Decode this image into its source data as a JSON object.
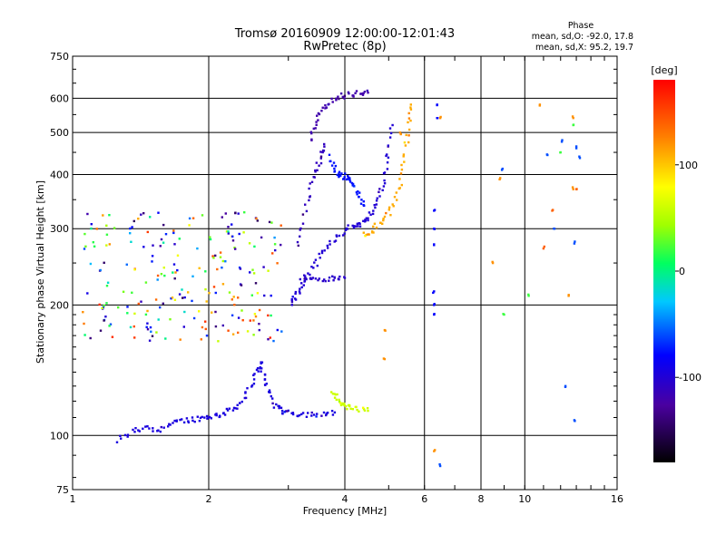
{
  "chart_data": {
    "type": "scatter",
    "title": "Tromsø 20160909 12:00:00-12:01:43",
    "subtitle": "RwPretec (8p)",
    "xlabel": "Frequency [MHz]",
    "ylabel": "Stationary phase Virtual Height [km]",
    "x_scale": "log",
    "y_scale": "log",
    "xlim": [
      1,
      16
    ],
    "ylim": [
      75,
      750
    ],
    "x_ticks": [
      1,
      2,
      4,
      6,
      8,
      10,
      16
    ],
    "y_ticks": [
      75,
      100,
      200,
      300,
      400,
      500,
      600,
      750
    ],
    "grid": true,
    "phase_info": {
      "title": "Phase",
      "line1": "mean, sd,O: -92.0, 17.8",
      "line2": "mean, sd,X:  95.2, 19.7"
    },
    "colorbar": {
      "label": "[deg]",
      "range": [
        -180,
        180
      ],
      "ticks": [
        100,
        0,
        -100
      ]
    },
    "traces": [
      {
        "phase": -95,
        "points": [
          [
            1.25,
            97
          ],
          [
            1.35,
            102
          ],
          [
            1.45,
            104
          ],
          [
            1.55,
            103
          ],
          [
            1.65,
            106
          ],
          [
            1.75,
            108
          ],
          [
            1.85,
            109
          ],
          [
            1.95,
            110
          ],
          [
            2.05,
            111
          ],
          [
            2.15,
            112
          ],
          [
            2.25,
            115
          ],
          [
            2.35,
            119
          ],
          [
            2.45,
            127
          ],
          [
            2.55,
            138
          ],
          [
            2.6,
            148
          ],
          [
            2.65,
            138
          ],
          [
            2.7,
            127
          ],
          [
            2.8,
            118
          ],
          [
            2.9,
            114
          ],
          [
            3.0,
            113
          ],
          [
            3.2,
            112
          ],
          [
            3.4,
            112
          ],
          [
            3.6,
            112
          ],
          [
            3.8,
            113
          ]
        ]
      },
      {
        "phase": 60,
        "points": [
          [
            3.75,
            126
          ],
          [
            3.85,
            121
          ],
          [
            3.95,
            118
          ],
          [
            4.1,
            116
          ],
          [
            4.3,
            115
          ],
          [
            4.5,
            114
          ]
        ]
      },
      {
        "phase": -100,
        "points": [
          [
            3.05,
            202
          ],
          [
            3.1,
            208
          ],
          [
            3.2,
            220
          ],
          [
            3.3,
            232
          ],
          [
            3.45,
            250
          ],
          [
            3.6,
            268
          ],
          [
            3.8,
            285
          ],
          [
            4.0,
            298
          ],
          [
            4.2,
            305
          ],
          [
            4.35,
            308
          ],
          [
            4.5,
            318
          ],
          [
            4.65,
            335
          ],
          [
            4.8,
            360
          ],
          [
            4.9,
            400
          ],
          [
            5.0,
            450
          ],
          [
            5.1,
            520
          ]
        ]
      },
      {
        "phase": -105,
        "points": [
          [
            3.2,
            232
          ],
          [
            3.4,
            230
          ],
          [
            3.6,
            229
          ],
          [
            3.8,
            230
          ],
          [
            4.0,
            231
          ]
        ]
      },
      {
        "phase": -110,
        "points": [
          [
            3.15,
            275
          ],
          [
            3.25,
            320
          ],
          [
            3.35,
            370
          ],
          [
            3.45,
            410
          ],
          [
            3.55,
            440
          ],
          [
            3.6,
            470
          ]
        ]
      },
      {
        "phase": -120,
        "points": [
          [
            3.35,
            480
          ],
          [
            3.45,
            520
          ],
          [
            3.55,
            560
          ],
          [
            3.7,
            590
          ],
          [
            3.9,
            605
          ],
          [
            4.1,
            612
          ],
          [
            4.3,
            615
          ],
          [
            4.5,
            618
          ]
        ]
      },
      {
        "phase": -75,
        "points": [
          [
            3.7,
            440
          ],
          [
            3.8,
            410
          ],
          [
            3.9,
            400
          ],
          [
            4.0,
            395
          ],
          [
            4.1,
            390
          ],
          [
            4.2,
            375
          ],
          [
            4.3,
            355
          ],
          [
            4.4,
            340
          ]
        ]
      },
      {
        "phase": 110,
        "points": [
          [
            4.4,
            290
          ],
          [
            4.6,
            298
          ],
          [
            4.8,
            310
          ],
          [
            5.0,
            325
          ],
          [
            5.2,
            350
          ],
          [
            5.35,
            400
          ],
          [
            5.45,
            460
          ],
          [
            5.55,
            520
          ],
          [
            5.6,
            580
          ]
        ]
      },
      {
        "phase": -80,
        "points": [
          [
            6.3,
            330
          ],
          [
            6.3,
            300
          ],
          [
            6.3,
            275
          ],
          [
            6.3,
            215
          ],
          [
            6.3,
            200
          ],
          [
            6.3,
            190
          ],
          [
            6.4,
            540
          ],
          [
            6.4,
            580
          ]
        ]
      },
      {
        "phase": 120,
        "points": [
          [
            6.3,
            92
          ],
          [
            6.5,
            540
          ],
          [
            8.5,
            250
          ],
          [
            8.8,
            390
          ],
          [
            10.8,
            580
          ],
          [
            12.8,
            540
          ],
          [
            12.8,
            370
          ],
          [
            12.5,
            210
          ],
          [
            4.9,
            150
          ],
          [
            4.9,
            175
          ],
          [
            5.3,
            500
          ]
        ]
      },
      {
        "phase": -60,
        "points": [
          [
            6.5,
            85
          ],
          [
            11.2,
            445
          ],
          [
            11.6,
            300
          ],
          [
            12.9,
            280
          ],
          [
            12.1,
            480
          ],
          [
            12.3,
            130
          ],
          [
            12.9,
            108
          ],
          [
            8.9,
            410
          ],
          [
            13.2,
            440
          ],
          [
            13.0,
            460
          ]
        ]
      },
      {
        "phase": 20,
        "points": [
          [
            12.0,
            450
          ],
          [
            9.0,
            190
          ],
          [
            12.8,
            520
          ],
          [
            10.2,
            210
          ]
        ]
      },
      {
        "phase": 140,
        "points": [
          [
            11.0,
            270
          ],
          [
            11.5,
            330
          ],
          [
            13.0,
            370
          ]
        ]
      }
    ],
    "scatter_cluster": {
      "x_range": [
        1.05,
        2.9
      ],
      "y_range": [
        165,
        330
      ],
      "phases": [
        -90,
        -50,
        0,
        60,
        120,
        150,
        -130,
        30
      ]
    }
  }
}
